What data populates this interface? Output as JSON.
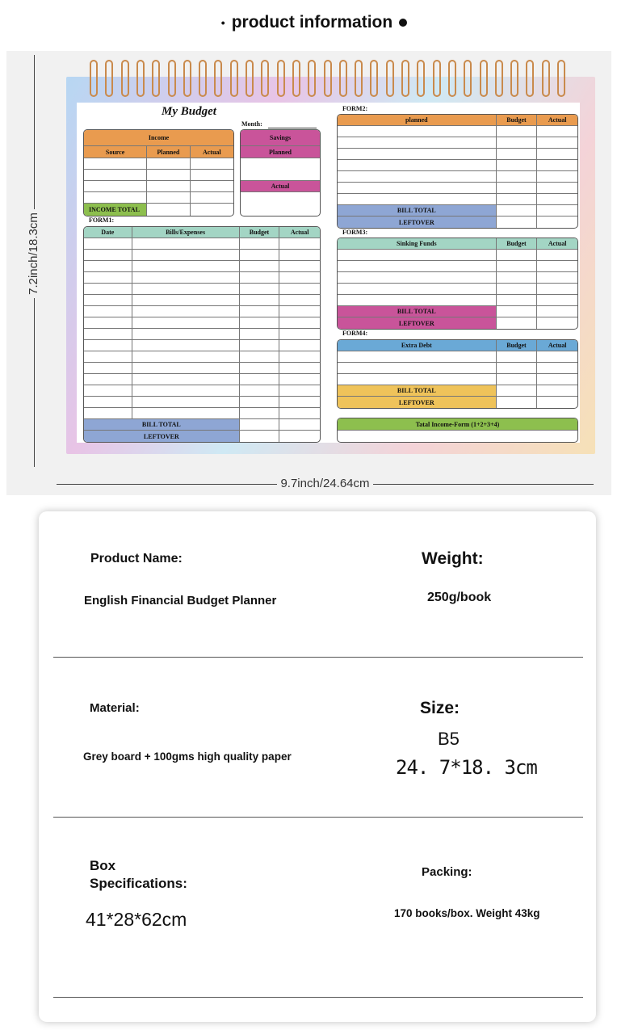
{
  "header": {
    "title": "product information",
    "bullet": "•"
  },
  "dimensions": {
    "height": "7.2inch/18.3cm",
    "width": "9.7inch/24.64cm"
  },
  "planner": {
    "title": "My Budget",
    "month": "Month:",
    "income": {
      "title": "Income",
      "cols": [
        "Source",
        "Planned",
        "Actual"
      ],
      "total": "INCOME TOTAL"
    },
    "savings": {
      "title": "Savings",
      "planned": "Planned",
      "actual": "Actual"
    },
    "form1": {
      "label": "FORM1:",
      "cols": [
        "Date",
        "Bills/Expenses",
        "Budget",
        "Actual"
      ],
      "bill_total": "BILL TOTAL",
      "leftover": "LEFTOVER"
    },
    "form2": {
      "label": "FORM2:",
      "cols": [
        "planned",
        "Budget",
        "Actual"
      ],
      "bill_total": "BILL TOTAL",
      "leftover": "LEFTOVER"
    },
    "form3": {
      "label": "FORM3:",
      "cols": [
        "Sinking Funds",
        "Budget",
        "Actual"
      ],
      "bill_total": "BILL TOTAL",
      "leftover": "LEFTOVER"
    },
    "form4": {
      "label": "FORM4:",
      "cols": [
        "Extra Debt",
        "Budget",
        "Actual"
      ],
      "bill_total": "BILL TOTAL",
      "leftover": "LEFTOVER"
    },
    "total": "Tatal Income-Form (1+2+3+4)"
  },
  "colors": {
    "orange": "#e99b4f",
    "pink": "#c9549a",
    "green": "#8dbf4e",
    "teal": "#a3d5c4",
    "blue": "#8ea6d4",
    "sky": "#6aa9d6",
    "yellow": "#efc35a"
  },
  "specs": {
    "product_name_label": "Product Name:",
    "product_name": "English Financial Budget Planner",
    "weight_label": "Weight:",
    "weight": "250g/book",
    "material_label": "Material:",
    "material": "Grey board + 100gms high quality paper",
    "size_label": "Size:",
    "size": "B5",
    "size_dims": "24. 7*18. 3cm",
    "box_label_1": "Box",
    "box_label_2": "Specifications:",
    "box": "41*28*62cm",
    "packing_label": "Packing:",
    "packing": "170 books/box. Weight 43kg"
  }
}
